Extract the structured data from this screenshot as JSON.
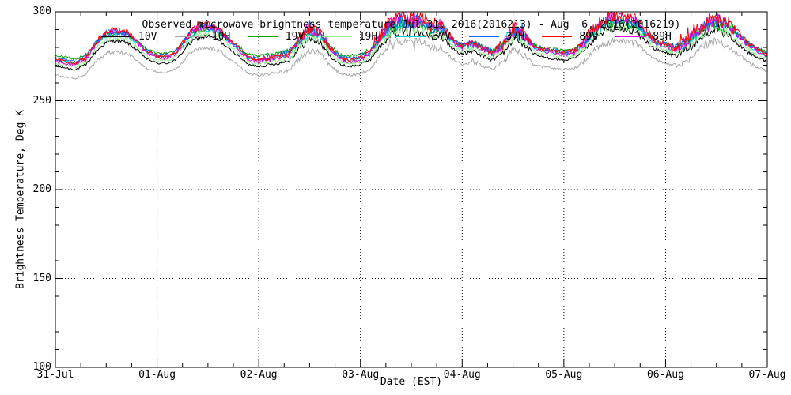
{
  "window": {
    "background": "#ffffff"
  },
  "chart_data": {
    "type": "line",
    "title": "Observed microwave brightness temperature Jul 31, 2016(2016213) - Aug  6, 2016(2016219)",
    "xlabel": "Date (EST)",
    "ylabel": "Brightness Temperature, Deg K",
    "ylim": [
      100,
      300
    ],
    "y_major_ticks": [
      100,
      150,
      200,
      250,
      300
    ],
    "y_minor_step": 10,
    "x_tick_labels": [
      "31-Jul",
      "01-Aug",
      "02-Aug",
      "03-Aug",
      "04-Aug",
      "05-Aug",
      "06-Aug",
      "07-Aug"
    ],
    "x_minor_ticks_per_day": 4,
    "grid": {
      "style": "dotted",
      "color": "#000000",
      "horizontal_at": [
        150,
        200,
        250
      ],
      "vertical_at_days": [
        1,
        2,
        3,
        4,
        5,
        6
      ]
    },
    "legend": {
      "position": "top-inside-row"
    },
    "t_step_days": 0.1,
    "base_series_name": "89V",
    "base_values": [
      273,
      272,
      271,
      274,
      283,
      289,
      290,
      289,
      284,
      278,
      275,
      275,
      278,
      287,
      292,
      293,
      291,
      285,
      280,
      274,
      273,
      274,
      275,
      277,
      285,
      291,
      289,
      280,
      274,
      273,
      274,
      278,
      287,
      294,
      297,
      296,
      297,
      292,
      293,
      285,
      281,
      283,
      280,
      277,
      282,
      291,
      288,
      281,
      279,
      278,
      277,
      278,
      283,
      291,
      296,
      298,
      297,
      296,
      290,
      284,
      282,
      280,
      283,
      289,
      295,
      297,
      294,
      289,
      283,
      279,
      276
    ],
    "noise_amplitude": [
      0.8,
      0.8,
      0.8,
      1.0,
      1.2,
      1.5,
      1.5,
      1.2,
      1.0,
      0.8,
      0.8,
      0.8,
      1.0,
      1.5,
      2.0,
      2.0,
      1.5,
      1.0,
      0.8,
      0.8,
      1.0,
      1.2,
      1.2,
      1.5,
      2.5,
      3.0,
      2.5,
      1.5,
      1.0,
      1.0,
      1.0,
      1.5,
      2.5,
      3.5,
      4.0,
      4.0,
      3.5,
      3.0,
      3.0,
      1.5,
      1.5,
      2.0,
      1.5,
      1.5,
      2.5,
      3.5,
      3.0,
      1.5,
      1.0,
      1.0,
      1.0,
      1.2,
      2.0,
      2.5,
      3.0,
      3.0,
      2.5,
      2.5,
      2.0,
      1.5,
      1.2,
      2.0,
      3.0,
      3.0,
      3.5,
      3.5,
      3.0,
      2.0,
      1.5,
      1.0,
      1.0
    ],
    "series": [
      {
        "name": "10V",
        "color": "#000000",
        "offset_low": -3.5,
        "offset_high": -7.5,
        "noise_scale": 0.7
      },
      {
        "name": "10H",
        "color": "#A8A8A8",
        "offset_low": -8.5,
        "offset_high": -14.0,
        "noise_scale": 0.7
      },
      {
        "name": "19V",
        "color": "#00A000",
        "offset_low": 2.5,
        "offset_high": -4.0,
        "noise_scale": 0.85
      },
      {
        "name": "19H",
        "color": "#90EE90",
        "offset_low": -2.0,
        "offset_high": -5.5,
        "noise_scale": 0.9
      },
      {
        "name": "37V",
        "color": "#00CED1",
        "offset_low": 0.0,
        "offset_high": -3.0,
        "noise_scale": 0.95
      },
      {
        "name": "37H",
        "color": "#0066FF",
        "offset_low": 1.0,
        "offset_high": -1.8,
        "noise_scale": 1.05
      },
      {
        "name": "89V",
        "color": "#FF0000",
        "offset_low": 0.0,
        "offset_high": 0.0,
        "noise_scale": 1.15
      },
      {
        "name": "89H",
        "color": "#E000E0",
        "offset_low": -1.0,
        "offset_high": -0.9,
        "noise_scale": 1.15
      }
    ]
  }
}
